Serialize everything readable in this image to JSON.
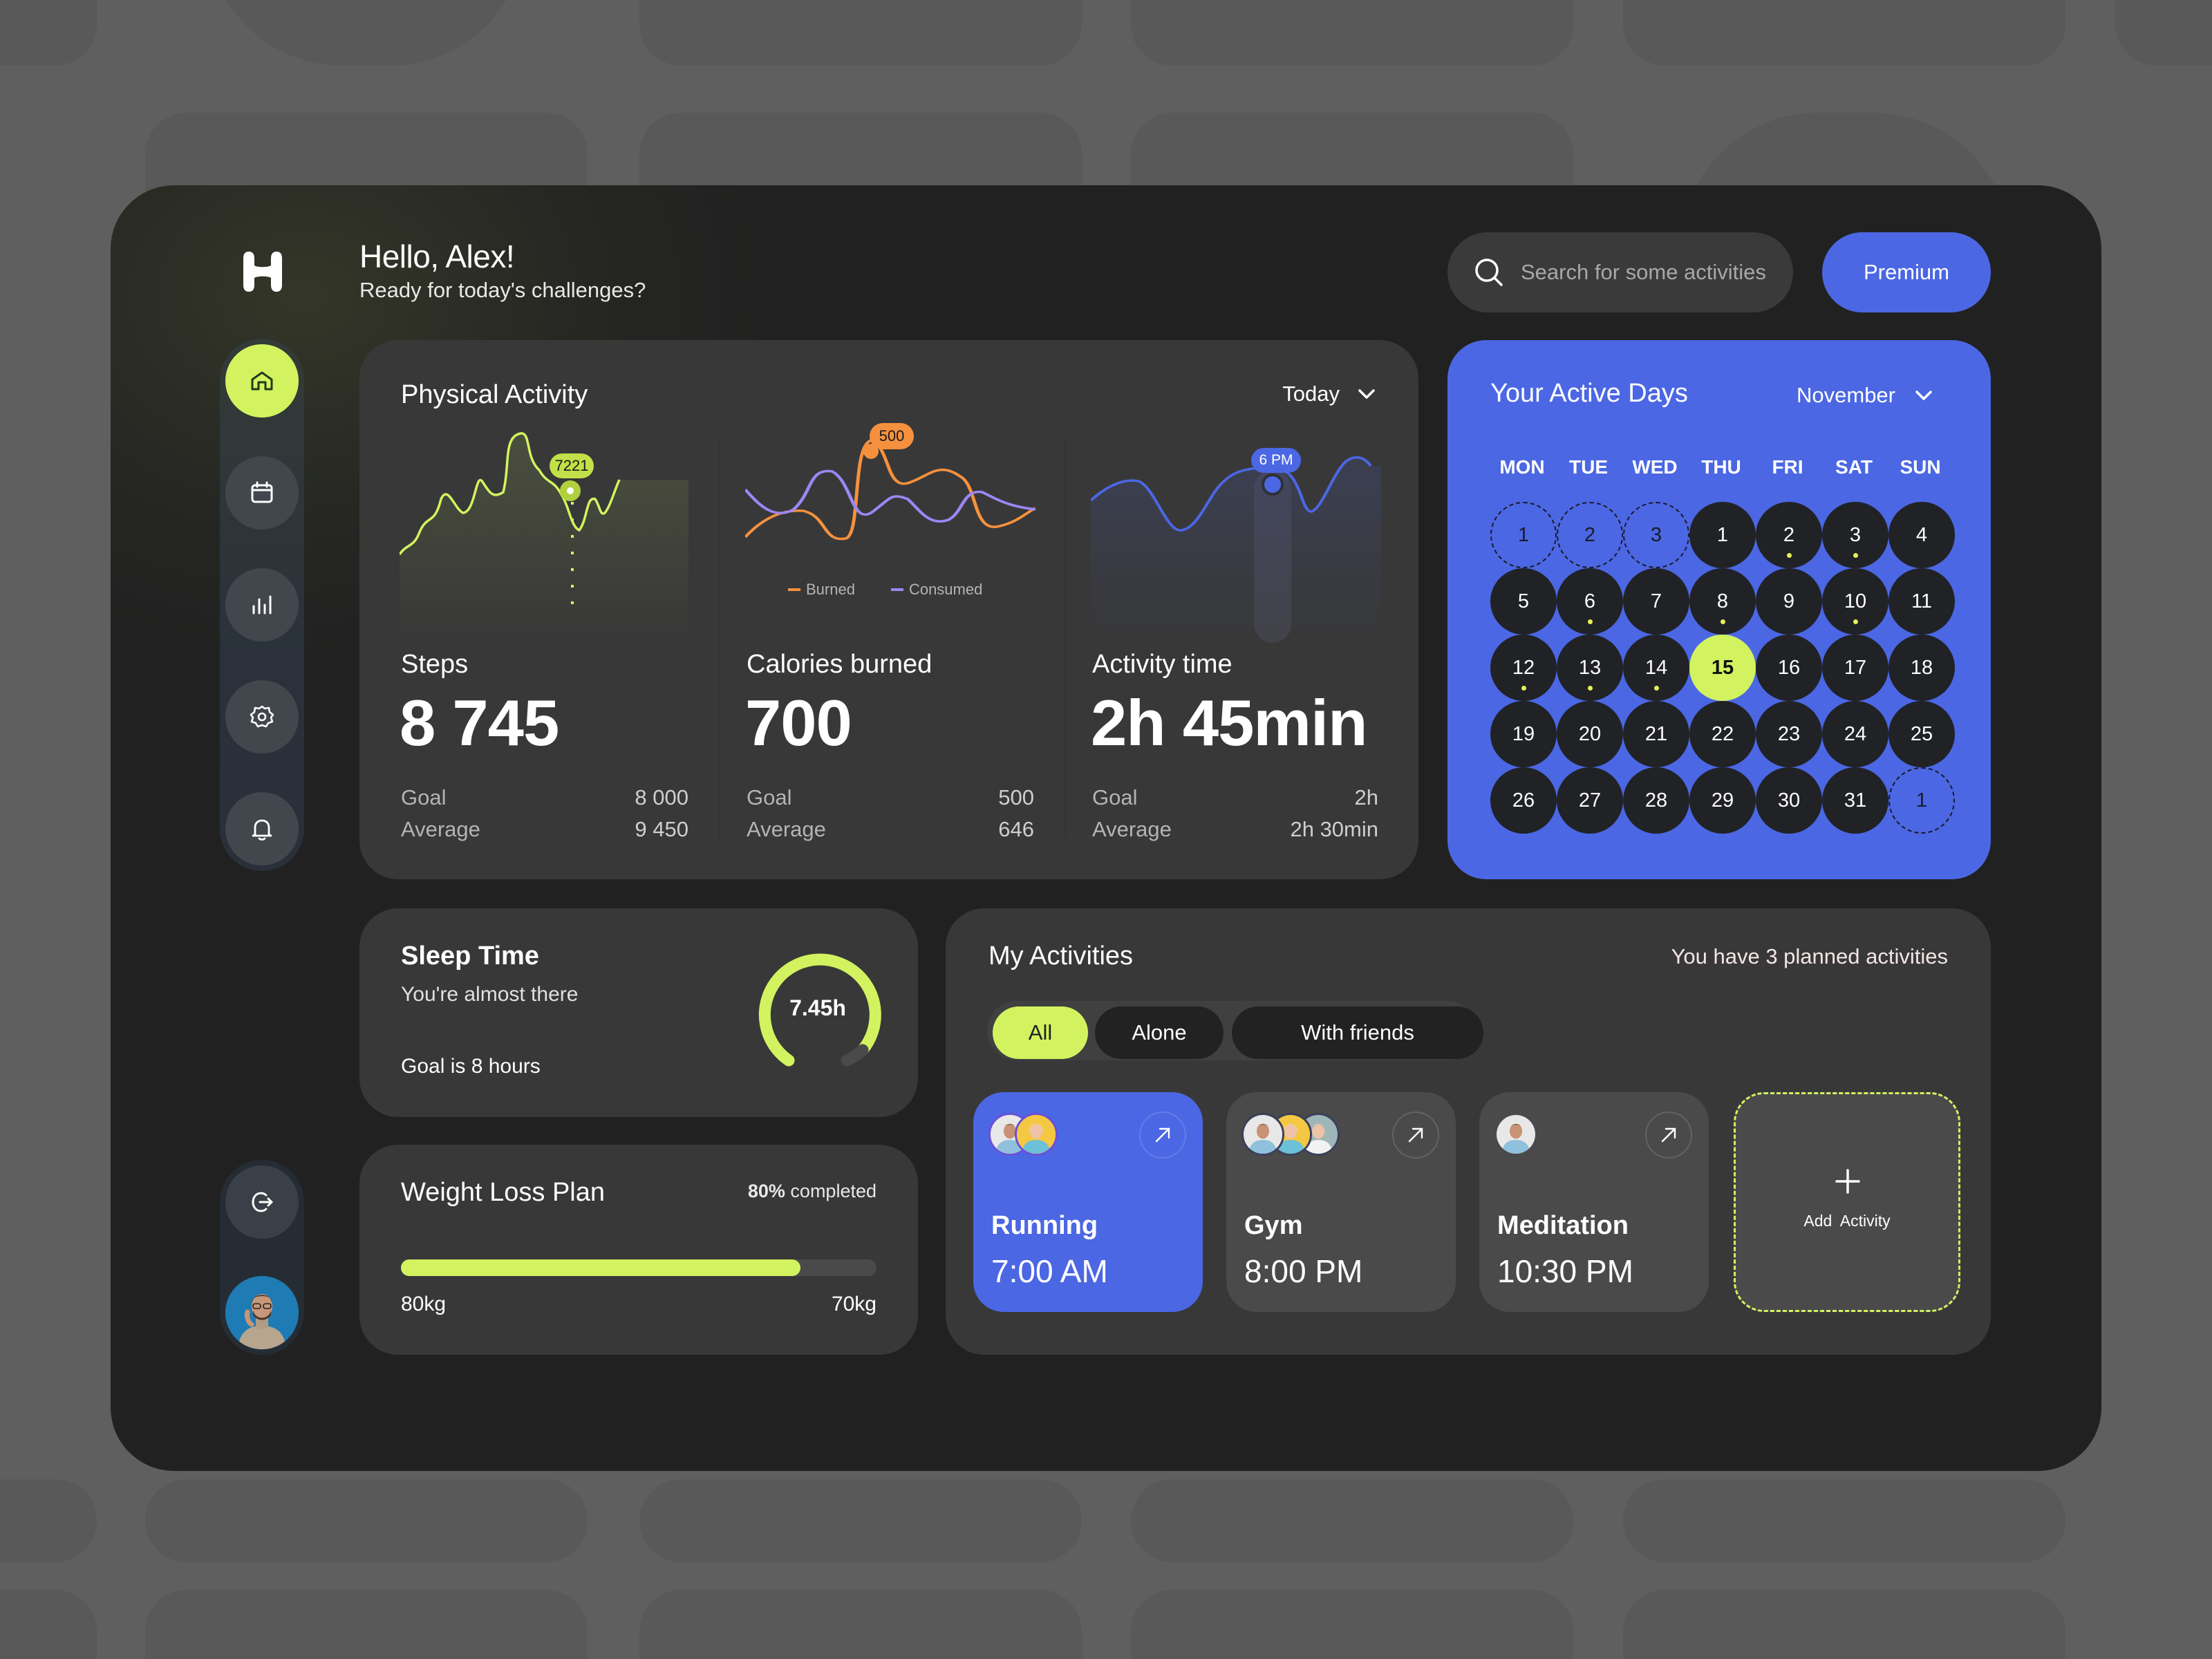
{
  "greeting": {
    "title": "Hello, Alex!",
    "subtitle": "Ready for today's challenges?"
  },
  "search": {
    "placeholder": "Search for some activities"
  },
  "premium_label": "Premium",
  "sidebar": {
    "items": [
      {
        "name": "home",
        "icon": "home-icon",
        "active": true
      },
      {
        "name": "calendar",
        "icon": "calendar-icon",
        "active": false
      },
      {
        "name": "statistics",
        "icon": "bar-chart-icon",
        "active": false
      },
      {
        "name": "settings",
        "icon": "gear-icon",
        "active": false
      },
      {
        "name": "notifications",
        "icon": "bell-icon",
        "active": false
      }
    ],
    "logout_icon": "logout-icon"
  },
  "physical_activity": {
    "title": "Physical Activity",
    "period": "Today",
    "metrics": [
      {
        "label": "Steps",
        "value": "8 745",
        "goal_label": "Goal",
        "goal": "8 000",
        "average_label": "Average",
        "average": "9 450",
        "tooltip": "7221"
      },
      {
        "label": "Calories burned",
        "value": "700",
        "goal_label": "Goal",
        "goal": "500",
        "average_label": "Average",
        "average": "646",
        "tooltip": "500"
      },
      {
        "label": "Activity time",
        "value": "2h 45min",
        "goal_label": "Goal",
        "goal": "2h",
        "average_label": "Average",
        "average": "2h 30min",
        "tooltip": "6 PM"
      }
    ],
    "legend": {
      "burned": "Burned",
      "consumed": "Consumed"
    }
  },
  "calendar": {
    "title": "Your Active Days",
    "month": "November",
    "weekdays": [
      "MON",
      "TUE",
      "WED",
      "THU",
      "FRI",
      "SAT",
      "SUN"
    ],
    "rows": [
      [
        {
          "d": "1",
          "out": true
        },
        {
          "d": "2",
          "out": true
        },
        {
          "d": "3",
          "out": true
        },
        {
          "d": "1"
        },
        {
          "d": "2",
          "dot": true
        },
        {
          "d": "3",
          "dot": true
        },
        {
          "d": "4"
        }
      ],
      [
        {
          "d": "5"
        },
        {
          "d": "6",
          "dot": true
        },
        {
          "d": "7"
        },
        {
          "d": "8",
          "dot": true
        },
        {
          "d": "9"
        },
        {
          "d": "10",
          "dot": true
        },
        {
          "d": "11"
        }
      ],
      [
        {
          "d": "12",
          "dot": true
        },
        {
          "d": "13",
          "dot": true
        },
        {
          "d": "14",
          "dot": true
        },
        {
          "d": "15",
          "today": true
        },
        {
          "d": "16"
        },
        {
          "d": "17"
        },
        {
          "d": "18"
        }
      ],
      [
        {
          "d": "19"
        },
        {
          "d": "20"
        },
        {
          "d": "21"
        },
        {
          "d": "22"
        },
        {
          "d": "23"
        },
        {
          "d": "24"
        },
        {
          "d": "25"
        }
      ],
      [
        {
          "d": "26"
        },
        {
          "d": "27"
        },
        {
          "d": "28"
        },
        {
          "d": "29"
        },
        {
          "d": "30"
        },
        {
          "d": "31"
        },
        {
          "d": "1",
          "out": true
        }
      ]
    ]
  },
  "sleep": {
    "title": "Sleep Time",
    "subtitle": "You're almost there",
    "goal": "Goal is 8 hours",
    "value": "7.45h"
  },
  "weight": {
    "title": "Weight Loss Plan",
    "percent": "80%",
    "completed_label": "completed",
    "start": "80kg",
    "target": "70kg",
    "progress": 80
  },
  "activities": {
    "title": "My Activities",
    "summary": "You have 3 planned activities",
    "filters": [
      "All",
      "Alone",
      "With friends"
    ],
    "active_filter": "All",
    "items": [
      {
        "name": "Running",
        "time": "7:00 AM",
        "participants": 2,
        "highlight": true
      },
      {
        "name": "Gym",
        "time": "8:00 PM",
        "participants": 3,
        "highlight": false
      },
      {
        "name": "Meditation",
        "time": "10:30 PM",
        "participants": 1,
        "highlight": false
      }
    ],
    "add_label": "Add  Activity"
  },
  "colors": {
    "accent_lime": "#d2f35f",
    "accent_blue": "#4b67e3",
    "orange": "#f5913e",
    "purple": "#9b87f5",
    "card": "#383838",
    "panel": "#212121"
  }
}
